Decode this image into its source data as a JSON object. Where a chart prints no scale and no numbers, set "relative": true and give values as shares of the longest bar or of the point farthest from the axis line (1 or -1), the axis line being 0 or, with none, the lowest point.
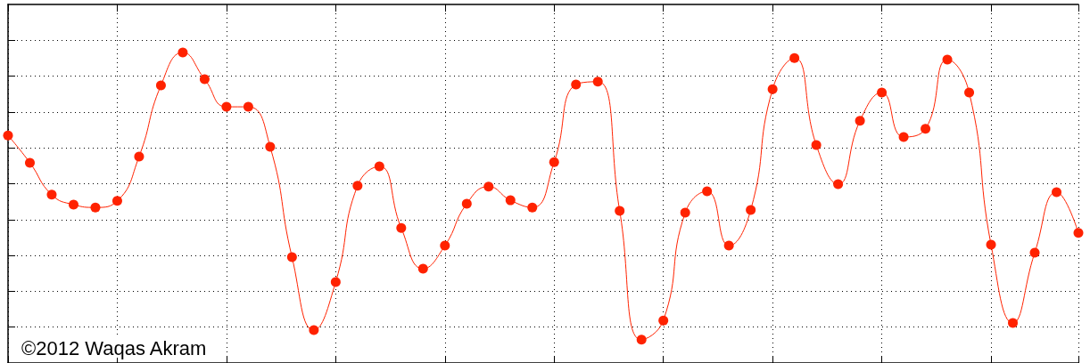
{
  "chart_data": {
    "type": "line",
    "relative": true,
    "grid": true,
    "marker": "circle",
    "line_style": "solid",
    "categories": [
      null,
      null,
      null,
      null,
      null,
      null,
      null,
      null,
      null,
      null,
      null,
      null,
      null,
      null,
      null,
      null,
      null,
      null,
      null,
      null,
      null,
      null,
      null,
      null,
      null,
      null,
      null,
      null,
      null,
      null,
      null,
      null,
      null,
      null,
      null,
      null,
      null,
      null,
      null,
      null,
      null,
      null,
      null,
      null,
      null,
      null,
      null,
      null,
      null,
      null
    ],
    "series": [
      {
        "color": "#ff2200",
        "values": [
          0.733,
          0.645,
          0.542,
          0.51,
          0.501,
          0.522,
          0.665,
          0.894,
          1,
          0.914,
          0.825,
          0.825,
          0.696,
          0.341,
          0.106,
          0.261,
          0.571,
          0.633,
          0.435,
          0.304,
          0.378,
          0.513,
          0.568,
          0.524,
          0.501,
          0.647,
          0.897,
          0.906,
          0.49,
          0.075,
          0.137,
          0.484,
          0.553,
          0.378,
          0.493,
          0.882,
          0.982,
          0.702,
          0.576,
          0.78,
          0.871,
          0.728,
          0.754,
          0.977,
          0.871,
          0.381,
          0.129,
          0.355,
          0.55,
          0.419
        ]
      }
    ],
    "annotations": [
      "©2012 Waqas Akram"
    ]
  }
}
